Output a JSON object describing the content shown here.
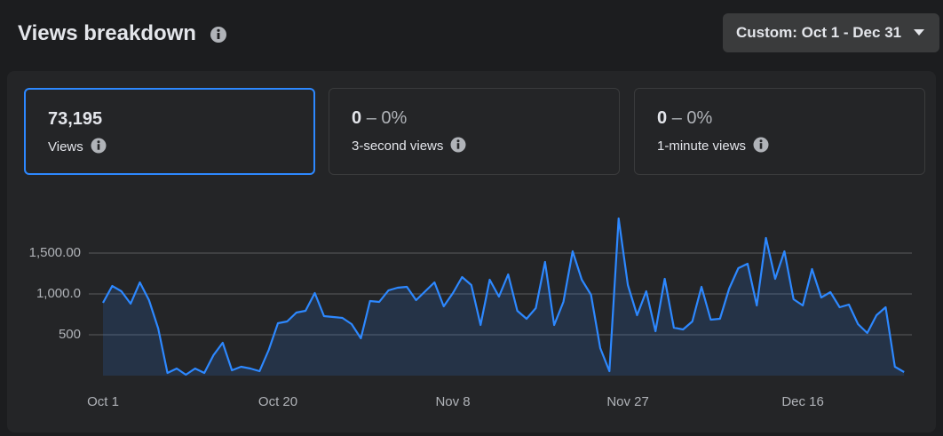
{
  "header": {
    "title": "Views breakdown",
    "date_range": "Custom: Oct 1 - Dec 31"
  },
  "metrics": [
    {
      "value": "73,195",
      "label": "Views"
    },
    {
      "value": "0",
      "change": "– 0%",
      "label": "3-second views"
    },
    {
      "value": "0",
      "change": "– 0%",
      "label": "1-minute views"
    }
  ],
  "chart_data": {
    "type": "area",
    "color": "#2d88ff",
    "grid": true,
    "categories": [
      "Oct 1",
      null,
      null,
      null,
      null,
      null,
      null,
      null,
      null,
      null,
      null,
      null,
      null,
      null,
      null,
      null,
      null,
      null,
      null,
      "Oct 20",
      null,
      null,
      null,
      null,
      null,
      null,
      null,
      null,
      null,
      null,
      null,
      null,
      null,
      null,
      null,
      null,
      null,
      null,
      "Nov 8",
      null,
      null,
      null,
      null,
      null,
      null,
      null,
      null,
      null,
      null,
      null,
      null,
      null,
      null,
      null,
      null,
      null,
      null,
      "Nov 27",
      null,
      null,
      null,
      null,
      null,
      null,
      null,
      null,
      null,
      null,
      null,
      null,
      null,
      null,
      null,
      null,
      null,
      null,
      "Dec 16",
      null,
      null,
      null,
      null,
      null,
      null,
      null,
      null,
      null,
      null,
      null
    ],
    "values": [
      891,
      1098,
      1033,
      880,
      1141,
      924,
      576,
      33,
      87,
      11,
      87,
      33,
      250,
      402,
      65,
      109,
      87,
      54,
      315,
      641,
      663,
      772,
      793,
      1011,
      728,
      717,
      707,
      630,
      457,
      913,
      902,
      1043,
      1076,
      1087,
      924,
      1033,
      1141,
      848,
      1011,
      1207,
      1109,
      620,
      1174,
      967,
      1239,
      793,
      696,
      826,
      1391,
      620,
      902,
      1522,
      1174,
      989,
      337,
      54,
      1924,
      1109,
      739,
      1033,
      543,
      1185,
      587,
      565,
      663,
      1087,
      685,
      696,
      1065,
      1315,
      1370,
      859,
      1685,
      1185,
      1522,
      935,
      859,
      1304,
      957,
      1022,
      837,
      870,
      630,
      522,
      739,
      837,
      109,
      43
    ],
    "ylim": [
      0,
      2000
    ],
    "yticks": [
      500,
      {
        "value": 1000,
        "label": "1,000.0"
      },
      {
        "value": 1500,
        "label": "1,500.00"
      }
    ]
  }
}
